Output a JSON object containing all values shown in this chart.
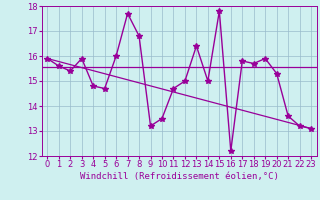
{
  "xlabel": "Windchill (Refroidissement éolien,°C)",
  "bg_color": "#cff0f0",
  "grid_color": "#99bbcc",
  "line_color": "#990099",
  "x_values": [
    0,
    1,
    2,
    3,
    4,
    5,
    6,
    7,
    8,
    9,
    10,
    11,
    12,
    13,
    14,
    15,
    16,
    17,
    18,
    19,
    20,
    21,
    22,
    23
  ],
  "windchill": [
    15.9,
    15.6,
    15.4,
    15.9,
    14.8,
    14.7,
    16.0,
    17.7,
    16.8,
    13.2,
    13.5,
    14.7,
    15.0,
    16.4,
    15.0,
    17.8,
    12.2,
    15.8,
    15.7,
    15.9,
    15.3,
    13.6,
    13.2,
    13.1
  ],
  "trend_start_x": 0,
  "trend_end_x": 23,
  "trend_start_y": 15.9,
  "trend_end_y": 13.1,
  "flat_y": 15.55,
  "ylim": [
    12,
    18
  ],
  "xlim": [
    -0.5,
    23.5
  ],
  "yticks": [
    12,
    13,
    14,
    15,
    16,
    17,
    18
  ],
  "xticks": [
    0,
    1,
    2,
    3,
    4,
    5,
    6,
    7,
    8,
    9,
    10,
    11,
    12,
    13,
    14,
    15,
    16,
    17,
    18,
    19,
    20,
    21,
    22,
    23
  ],
  "tick_fontsize": 6,
  "label_fontsize": 6.5,
  "marker": "*",
  "markersize": 4,
  "linewidth": 1.0,
  "trend_linewidth": 0.9,
  "flat_linewidth": 0.9
}
